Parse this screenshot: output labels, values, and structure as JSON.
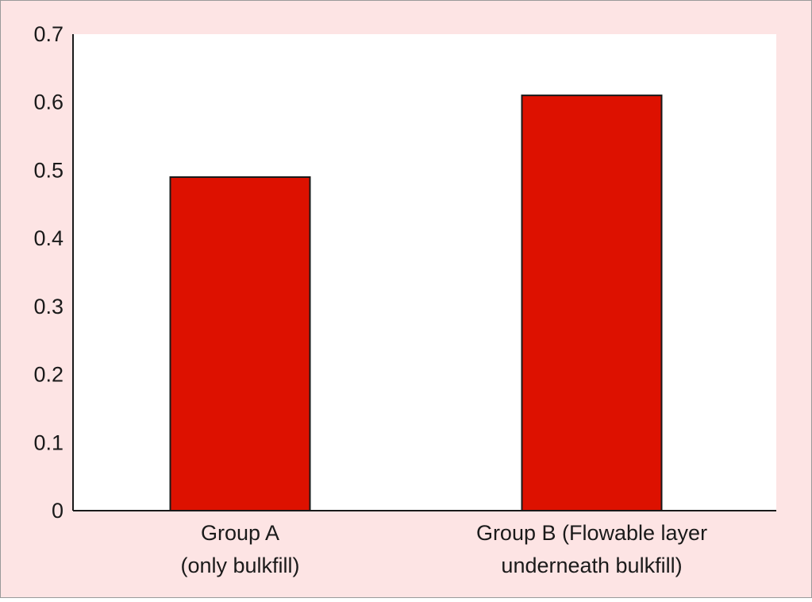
{
  "colors": {
    "background": "#fde4e4",
    "plot_background": "#ffffff",
    "bar_fill": "#dd1100",
    "bar_stroke": "#1a1a1a",
    "axis": "#1a1a1a",
    "frame_border": "#9a9a9a"
  },
  "chart_data": {
    "type": "bar",
    "categories": [
      [
        "Group A",
        "(only bulkfill)"
      ],
      [
        "Group B (Flowable layer",
        "underneath bulkfill)"
      ]
    ],
    "values": [
      0.49,
      0.61
    ],
    "yticks": [
      "0",
      "0.1",
      "0.2",
      "0.3",
      "0.4",
      "0.5",
      "0.6",
      "0.7"
    ],
    "ylim": [
      0,
      0.7
    ],
    "title": "",
    "xlabel": "",
    "ylabel": "",
    "grid": false,
    "legend": false
  }
}
